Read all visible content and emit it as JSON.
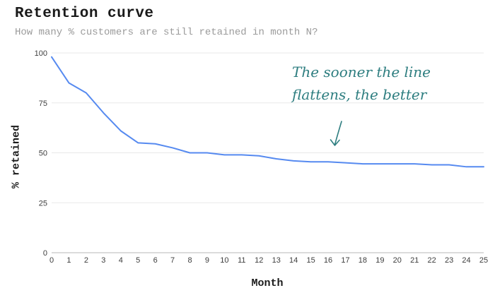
{
  "chart_data": {
    "type": "line",
    "title": "Retention curve",
    "subtitle": "How many % customers are still retained in month N?",
    "xlabel": "Month",
    "ylabel": "% retained",
    "x": [
      0,
      1,
      2,
      3,
      4,
      5,
      6,
      7,
      8,
      9,
      10,
      11,
      12,
      13,
      14,
      15,
      16,
      17,
      18,
      19,
      20,
      21,
      22,
      23,
      24,
      25
    ],
    "series": [
      {
        "name": "% retained",
        "values": [
          98,
          85,
          80,
          70,
          61,
          55,
          54.5,
          52.5,
          50,
          50,
          49,
          49,
          48.5,
          47,
          46,
          45.5,
          45.5,
          45,
          44.5,
          44.5,
          44.5,
          44.5,
          44,
          44,
          43,
          43
        ]
      }
    ],
    "xlim": [
      0,
      25
    ],
    "ylim": [
      0,
      100
    ],
    "yticks": [
      0,
      25,
      50,
      75,
      100
    ],
    "grid": "horizontal-only",
    "legend": "none",
    "annotation": {
      "text_lines": [
        "The sooner the line",
        "flattens, the better"
      ],
      "arrow_points_to": "flat part of line near month 16"
    },
    "colors": {
      "line": "#568af0",
      "gridline": "#e8e8e8",
      "axis_line": "#b7b7b7",
      "tick_label": "#3d3d3d",
      "title": "#1a1a1a",
      "subtitle": "#9b9b9b",
      "annotation": "#2e7e80"
    }
  }
}
